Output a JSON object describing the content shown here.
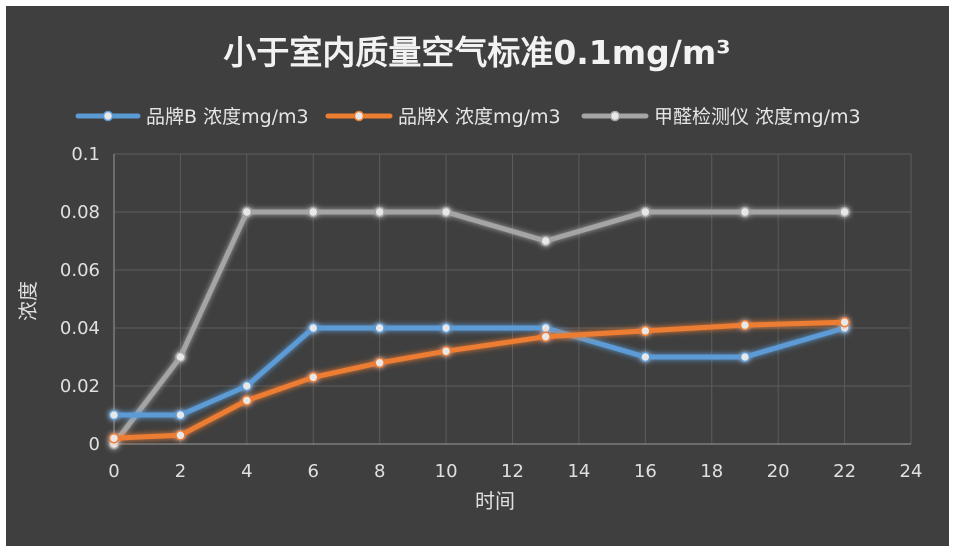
{
  "chart_data": {
    "type": "line",
    "title": "小于室内质量空气标准0.1mg/m³",
    "xlabel": "时间",
    "ylabel": "浓度",
    "xlim": [
      0,
      24
    ],
    "ylim": [
      0,
      0.1
    ],
    "x_ticks": [
      0,
      2,
      4,
      6,
      8,
      10,
      12,
      14,
      16,
      18,
      20,
      22,
      24
    ],
    "y_ticks": [
      0,
      0.02,
      0.04,
      0.06,
      0.08,
      0.1
    ],
    "y_tick_labels": [
      "0",
      "0.02",
      "0.04",
      "0.06",
      "0.08",
      "0.1"
    ],
    "grid": true,
    "legend_position": "top",
    "series": [
      {
        "name": "品牌B 浓度mg/m3",
        "color": "#5b9bd5",
        "x": [
          0,
          2,
          4,
          6,
          8,
          10,
          13,
          16,
          19,
          22
        ],
        "values": [
          0.01,
          0.01,
          0.02,
          0.04,
          0.04,
          0.04,
          0.04,
          0.03,
          0.03,
          0.04
        ]
      },
      {
        "name": "品牌X 浓度mg/m3",
        "color": "#ed7d31",
        "x": [
          0,
          2,
          4,
          6,
          8,
          10,
          13,
          16,
          19,
          22
        ],
        "values": [
          0.002,
          0.003,
          0.015,
          0.023,
          0.028,
          0.032,
          0.037,
          0.039,
          0.041,
          0.042
        ]
      },
      {
        "name": "甲醛检测仪 浓度mg/m3",
        "color": "#a5a5a5",
        "x": [
          0,
          2,
          4,
          6,
          8,
          10,
          13,
          16,
          19,
          22
        ],
        "values": [
          0,
          0.03,
          0.08,
          0.08,
          0.08,
          0.08,
          0.07,
          0.08,
          0.08,
          0.08
        ]
      }
    ]
  }
}
